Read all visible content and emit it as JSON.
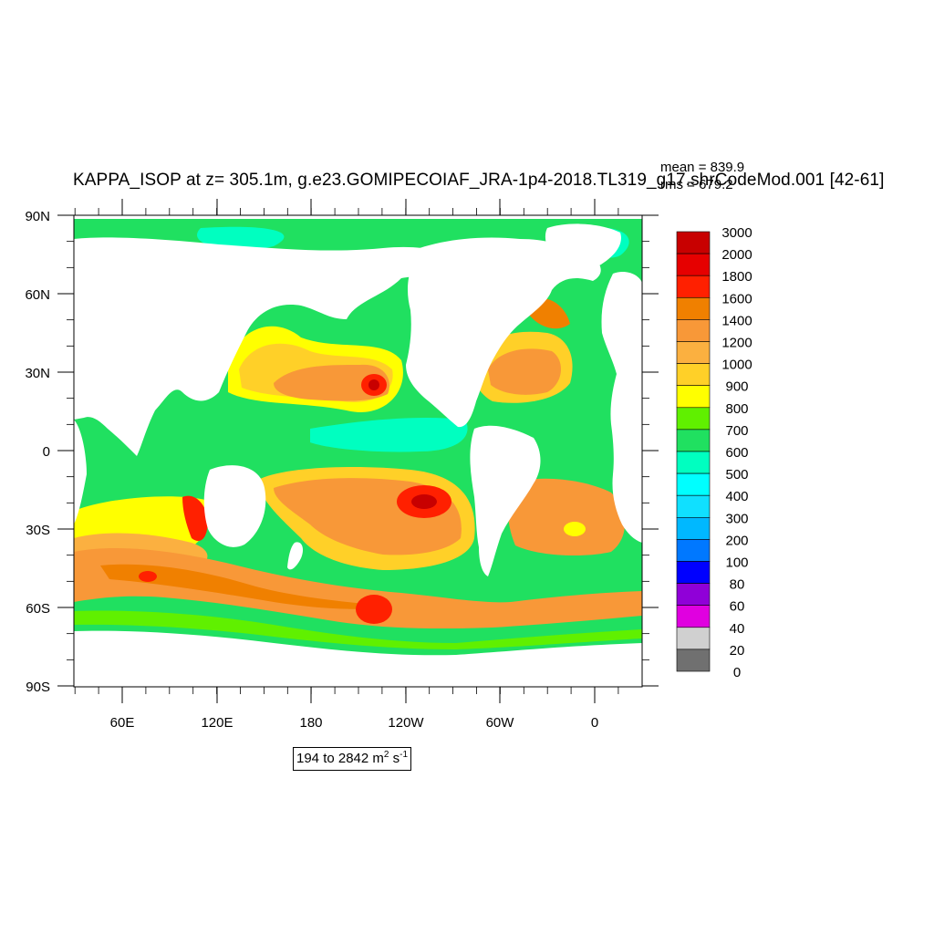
{
  "title": "KAPPA_ISOP at z= 305.1m, g.e23.GOMIPECOIAF_JRA-1p4-2018.TL319_g17.shrCodeMod.001 [42-61]",
  "stats": {
    "mean": "mean = 839.9",
    "rms": "rms = 679.2"
  },
  "range": {
    "text": "194 to 2842 m",
    "unit_sup": "2",
    "unit_tail": " s",
    "unit_tail_sup": "-1"
  },
  "axes": {
    "y_ticks": [
      "90N",
      "60N",
      "30N",
      "0",
      "30S",
      "60S",
      "90S"
    ],
    "x_ticks": [
      "60E",
      "120E",
      "180",
      "120W",
      "60W",
      "0"
    ]
  },
  "colorbar": {
    "labels": [
      "3000",
      "2000",
      "1800",
      "1600",
      "1400",
      "1200",
      "1000",
      "900",
      "800",
      "700",
      "600",
      "500",
      "400",
      "300",
      "200",
      "100",
      "80",
      "60",
      "40",
      "20",
      "0"
    ],
    "colors": [
      "#c80000",
      "#e60000",
      "#ff2000",
      "#f08000",
      "#f89838",
      "#fbb040",
      "#ffd028",
      "#ffff00",
      "#60f000",
      "#20e060",
      "#00ffc0",
      "#00ffff",
      "#10e0ff",
      "#00b8ff",
      "#0078ff",
      "#0000ff",
      "#9000d8",
      "#e000e0",
      "#d0d0d0",
      "#707070"
    ]
  },
  "colors": {
    "land": "#ffffff",
    "ocean_base": "#20e060",
    "high": "#fbb040",
    "peak": "#ff2000",
    "max": "#c80000",
    "low": "#00ffc0"
  }
}
